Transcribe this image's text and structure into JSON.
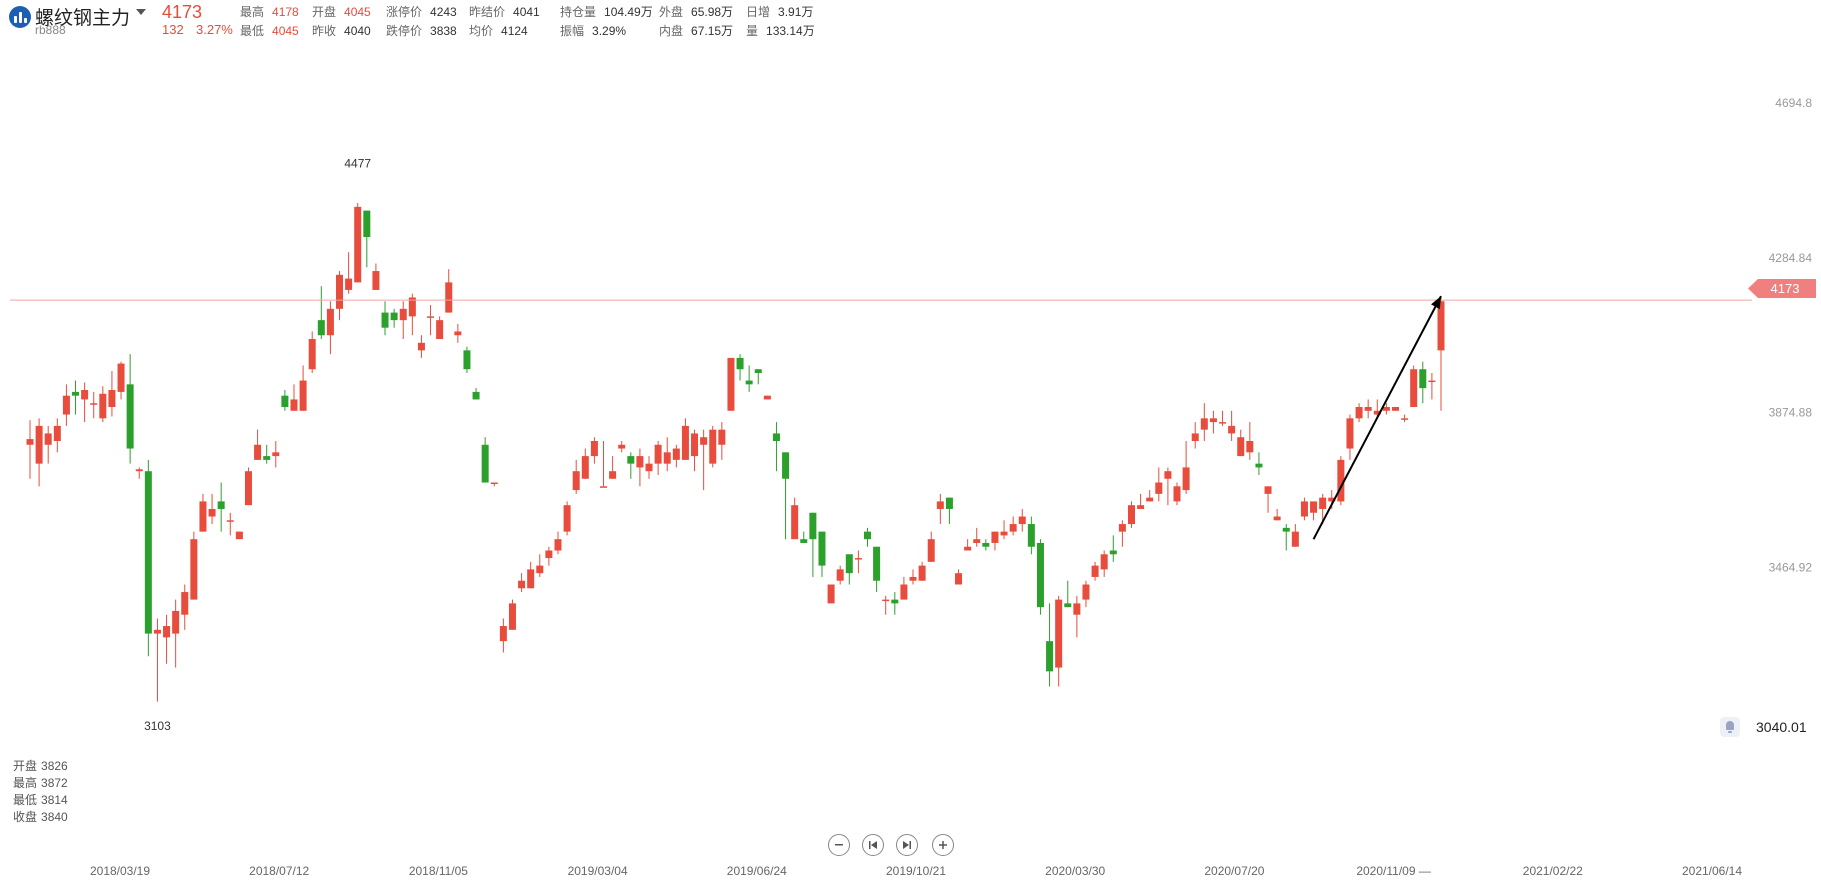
{
  "header": {
    "name": "螺纹钢主力",
    "code": "rb888",
    "last": "4173",
    "change": "132",
    "change_pct": "3.27%",
    "quotes": [
      {
        "label": "最高",
        "value": "4178",
        "red": true
      },
      {
        "label": "开盘",
        "value": "4045",
        "red": true
      },
      {
        "label": "涨停价",
        "value": "4243",
        "red": false
      },
      {
        "label": "昨结价",
        "value": "4041",
        "red": false
      },
      {
        "label": "持仓量",
        "value": "104.49万",
        "red": false
      },
      {
        "label": "外盘",
        "value": "65.98万",
        "red": false
      },
      {
        "label": "日增",
        "value": "3.91万",
        "red": false
      },
      {
        "label": "最低",
        "value": "4045",
        "red": true
      },
      {
        "label": "昨收",
        "value": "4040",
        "red": false
      },
      {
        "label": "跌停价",
        "value": "3838",
        "red": false
      },
      {
        "label": "均价",
        "value": "4124",
        "red": false
      },
      {
        "label": "振幅",
        "value": "3.29%",
        "red": false
      },
      {
        "label": "内盘",
        "value": "67.15万",
        "red": false
      },
      {
        "label": "量",
        "value": "133.14万",
        "red": false
      }
    ]
  },
  "chart_data": {
    "type": "candlestick",
    "y_ticks": [
      4694.8,
      4284.84,
      3874.88,
      3464.92
    ],
    "ylim": [
      3040.01,
      4740
    ],
    "current_price": "4173",
    "bottom_price": "3040.01",
    "high_annotation": "4477",
    "low_annotation": "3103",
    "x_ticks": [
      "2018/03/19",
      "2018/07/12",
      "2018/11/05",
      "2019/03/04",
      "2019/06/24",
      "2019/10/21",
      "2020/03/30",
      "2020/07/20",
      "2020/11/09 —",
      "2021/02/22",
      "2021/06/14"
    ],
    "colors": {
      "up": "#e74c3c",
      "down": "#2ca02c",
      "line": "#f4a3a3"
    },
    "candles": [
      [
        3790,
        3840,
        3805,
        3855,
        3700
      ],
      [
        3740,
        3690,
        3840,
        3860,
        3680
      ],
      [
        3790,
        3780,
        3820,
        3840,
        3740
      ],
      [
        3800,
        3820,
        3840,
        3860,
        3770
      ],
      [
        3870,
        3900,
        3920,
        3950,
        3840
      ],
      [
        3930,
        3910,
        3920,
        3960,
        3870
      ],
      [
        3910,
        3870,
        3935,
        3955,
        3850
      ],
      [
        3900,
        3910,
        3900,
        3930,
        3860
      ],
      [
        3860,
        3880,
        3925,
        3945,
        3850
      ],
      [
        3890,
        3900,
        3935,
        3985,
        3865
      ],
      [
        3930,
        3950,
        4005,
        4010,
        3910
      ],
      [
        3950,
        3960,
        3780,
        4030,
        3740
      ],
      [
        3720,
        3725,
        3725,
        3730,
        3700
      ],
      [
        3720,
        3750,
        3290,
        3750,
        3230
      ],
      [
        3290,
        3300,
        3300,
        3330,
        3110
      ],
      [
        3280,
        3240,
        3310,
        3340,
        3210
      ],
      [
        3290,
        3240,
        3350,
        3380,
        3200
      ],
      [
        3340,
        3380,
        3400,
        3420,
        3300
      ],
      [
        3380,
        3400,
        3540,
        3560,
        3380
      ],
      [
        3560,
        3600,
        3640,
        3660,
        3590
      ],
      [
        3600,
        3660,
        3620,
        3660,
        3580
      ],
      [
        3640,
        3680,
        3620,
        3690,
        3560
      ],
      [
        3590,
        3570,
        3590,
        3610,
        3550
      ],
      [
        3540,
        3560,
        3560,
        3560,
        3550
      ],
      [
        3630,
        3690,
        3720,
        3730,
        3660
      ],
      [
        3750,
        3780,
        3790,
        3830,
        3760
      ],
      [
        3760,
        3770,
        3750,
        3790,
        3740
      ],
      [
        3760,
        3800,
        3770,
        3800,
        3730
      ],
      [
        3920,
        3930,
        3890,
        3935,
        3880
      ],
      [
        3880,
        3910,
        3910,
        3950,
        3890
      ],
      [
        3880,
        3930,
        3960,
        4000,
        3920
      ],
      [
        3990,
        3980,
        4070,
        4090,
        3980
      ],
      [
        4120,
        4200,
        4080,
        4210,
        4070
      ],
      [
        4080,
        4130,
        4150,
        4170,
        4030
      ],
      [
        4150,
        4170,
        4240,
        4250,
        4120
      ],
      [
        4200,
        4270,
        4230,
        4300,
        4190
      ],
      [
        4220,
        4420,
        4420,
        4430,
        4430
      ],
      [
        4410,
        4310,
        4340,
        4350,
        4260
      ],
      [
        4200,
        4220,
        4250,
        4270,
        4230
      ],
      [
        4140,
        4150,
        4100,
        4170,
        4080
      ],
      [
        4140,
        4130,
        4120,
        4150,
        4100
      ],
      [
        4120,
        4090,
        4150,
        4170,
        4070
      ],
      [
        4130,
        4080,
        4180,
        4190,
        4080
      ],
      [
        4040,
        4010,
        4060,
        4080,
        4020
      ],
      [
        4130,
        4090,
        4130,
        4160,
        4080
      ],
      [
        4070,
        4090,
        4120,
        4130,
        4070
      ],
      [
        4140,
        4240,
        4220,
        4255,
        4180
      ],
      [
        4080,
        4080,
        4090,
        4110,
        4060
      ],
      [
        4040,
        4030,
        3990,
        4050,
        3980
      ],
      [
        3930,
        3920,
        3910,
        3940,
        3910
      ],
      [
        3790,
        3720,
        3690,
        3810,
        3690
      ],
      [
        3690,
        3720,
        3690,
        3680,
        3680
      ],
      [
        3270,
        3260,
        3310,
        3330,
        3240
      ],
      [
        3300,
        3330,
        3370,
        3380,
        3320
      ],
      [
        3410,
        3410,
        3430,
        3450,
        3400
      ],
      [
        3410,
        3460,
        3460,
        3480,
        3450
      ],
      [
        3450,
        3450,
        3470,
        3500,
        3440
      ],
      [
        3490,
        3480,
        3510,
        3520,
        3470
      ],
      [
        3510,
        3510,
        3540,
        3560,
        3500
      ],
      [
        3560,
        3560,
        3630,
        3640,
        3550
      ],
      [
        3670,
        3700,
        3720,
        3750,
        3660
      ],
      [
        3700,
        3740,
        3760,
        3780,
        3700
      ],
      [
        3760,
        3790,
        3800,
        3810,
        3740
      ],
      [
        3680,
        3760,
        3680,
        3800,
        3680
      ],
      [
        3700,
        3720,
        3720,
        3760,
        3700
      ],
      [
        3780,
        3800,
        3790,
        3800,
        3770
      ],
      [
        3760,
        3780,
        3740,
        3770,
        3700
      ],
      [
        3730,
        3690,
        3760,
        3780,
        3680
      ],
      [
        3720,
        3720,
        3740,
        3760,
        3700
      ],
      [
        3740,
        3750,
        3790,
        3800,
        3710
      ],
      [
        3740,
        3760,
        3770,
        3810,
        3720
      ],
      [
        3750,
        3740,
        3780,
        3790,
        3730
      ],
      [
        3750,
        3800,
        3840,
        3860,
        3790
      ],
      [
        3760,
        3790,
        3820,
        3830,
        3720
      ],
      [
        3790,
        3790,
        3810,
        3830,
        3670
      ],
      [
        3740,
        3780,
        3830,
        3840,
        3730
      ],
      [
        3790,
        3800,
        3830,
        3850,
        3750
      ],
      [
        3880,
        3880,
        4020,
        4020,
        3910
      ],
      [
        4020,
        4020,
        3990,
        4030,
        3960
      ],
      [
        3960,
        3990,
        3950,
        4000,
        3930
      ],
      [
        3990,
        3930,
        3980,
        3990,
        3950
      ],
      [
        3910,
        3930,
        3920,
        3920,
        3910
      ],
      [
        3820,
        3850,
        3800,
        3850,
        3720
      ],
      [
        3770,
        3700,
        3700,
        3720,
        3540
      ],
      [
        3540,
        3620,
        3630,
        3650,
        3630
      ],
      [
        3540,
        3510,
        3530,
        3560,
        3560
      ],
      [
        3610,
        3600,
        3540,
        3580,
        3440
      ],
      [
        3560,
        3530,
        3470,
        3470,
        3440
      ],
      [
        3370,
        3340,
        3420,
        3400,
        3390
      ],
      [
        3430,
        3440,
        3460,
        3470,
        3420
      ],
      [
        3500,
        3470,
        3450,
        3460,
        3420
      ],
      [
        3490,
        3470,
        3490,
        3510,
        3450
      ],
      [
        3560,
        3550,
        3540,
        3570,
        3520
      ],
      [
        3520,
        3460,
        3430,
        3460,
        3400
      ],
      [
        3380,
        3340,
        3380,
        3390,
        3340
      ],
      [
        3380,
        3360,
        3370,
        3400,
        3340
      ],
      [
        3380,
        3400,
        3420,
        3440,
        3380
      ],
      [
        3430,
        3450,
        3440,
        3460,
        3420
      ],
      [
        3430,
        3470,
        3470,
        3480,
        3460
      ],
      [
        3480,
        3550,
        3540,
        3560,
        3530
      ],
      [
        3620,
        3650,
        3640,
        3660,
        3580
      ],
      [
        3650,
        3640,
        3620,
        3650,
        3580
      ],
      [
        3420,
        3440,
        3450,
        3460,
        3420
      ],
      [
        3510,
        3530,
        3520,
        3540,
        3510
      ],
      [
        3530,
        3540,
        3540,
        3570,
        3520
      ],
      [
        3530,
        3530,
        3520,
        3540,
        3510
      ],
      [
        3530,
        3560,
        3560,
        3560,
        3510
      ],
      [
        3550,
        3580,
        3560,
        3590,
        3540
      ],
      [
        3560,
        3560,
        3580,
        3600,
        3550
      ],
      [
        3580,
        3600,
        3600,
        3620,
        3560
      ],
      [
        3580,
        3580,
        3520,
        3600,
        3500
      ],
      [
        3530,
        3490,
        3360,
        3540,
        3340
      ],
      [
        3270,
        3240,
        3190,
        3370,
        3150
      ],
      [
        3200,
        3220,
        3380,
        3390,
        3150
      ],
      [
        3370,
        3380,
        3360,
        3430,
        3360
      ],
      [
        3340,
        3350,
        3370,
        3390,
        3280
      ],
      [
        3380,
        3380,
        3420,
        3430,
        3360
      ],
      [
        3440,
        3440,
        3470,
        3480,
        3430
      ],
      [
        3460,
        3470,
        3500,
        3510,
        3440
      ],
      [
        3510,
        3530,
        3500,
        3550,
        3480
      ],
      [
        3560,
        3560,
        3580,
        3590,
        3520
      ],
      [
        3580,
        3590,
        3630,
        3640,
        3570
      ],
      [
        3620,
        3640,
        3630,
        3660,
        3620
      ],
      [
        3640,
        3640,
        3650,
        3670,
        3640
      ],
      [
        3660,
        3660,
        3690,
        3730,
        3640
      ],
      [
        3700,
        3720,
        3720,
        3730,
        3630
      ],
      [
        3640,
        3650,
        3680,
        3690,
        3630
      ],
      [
        3670,
        3670,
        3730,
        3800,
        3660
      ],
      [
        3800,
        3810,
        3820,
        3850,
        3780
      ],
      [
        3830,
        3820,
        3860,
        3900,
        3800
      ],
      [
        3850,
        3860,
        3860,
        3880,
        3820
      ],
      [
        3850,
        3860,
        3850,
        3880,
        3840
      ],
      [
        3820,
        3830,
        3840,
        3880,
        3800
      ],
      [
        3760,
        3790,
        3810,
        3830,
        3780
      ],
      [
        3770,
        3770,
        3800,
        3850,
        3750
      ],
      [
        3740,
        3740,
        3730,
        3770,
        3710
      ],
      [
        3660,
        3640,
        3680,
        3680,
        3610
      ],
      [
        3590,
        3600,
        3600,
        3620,
        3590
      ],
      [
        3570,
        3530,
        3560,
        3580,
        3510
      ],
      [
        3520,
        3560,
        3560,
        3580,
        3530
      ],
      [
        3600,
        3610,
        3640,
        3650,
        3590
      ],
      [
        3610,
        3630,
        3640,
        3640,
        3590
      ],
      [
        3620,
        3640,
        3650,
        3660,
        3580
      ],
      [
        3640,
        3640,
        3650,
        3670,
        3620
      ],
      [
        3640,
        3650,
        3750,
        3760,
        3630
      ],
      [
        3780,
        3760,
        3860,
        3870,
        3750
      ],
      [
        3860,
        3860,
        3890,
        3900,
        3850
      ],
      [
        3880,
        3870,
        3890,
        3910,
        3860
      ],
      [
        3870,
        3880,
        3880,
        3910,
        3860
      ],
      [
        3880,
        3880,
        3890,
        3900,
        3870
      ],
      [
        3880,
        3880,
        3890,
        3890,
        3880
      ],
      [
        3860,
        3850,
        3860,
        3870,
        3850
      ],
      [
        3890,
        3960,
        3990,
        4000,
        3890
      ],
      [
        3990,
        3950,
        3940,
        4010,
        3900
      ],
      [
        3960,
        3930,
        3960,
        3980,
        3910
      ],
      [
        4040,
        4040,
        4170,
        4180,
        3880
      ]
    ],
    "ohlc_readout": [
      {
        "label": "开盘",
        "value": "3826"
      },
      {
        "label": "最高",
        "value": "3872"
      },
      {
        "label": "最低",
        "value": "3814"
      },
      {
        "label": "收盘",
        "value": "3840"
      }
    ]
  }
}
